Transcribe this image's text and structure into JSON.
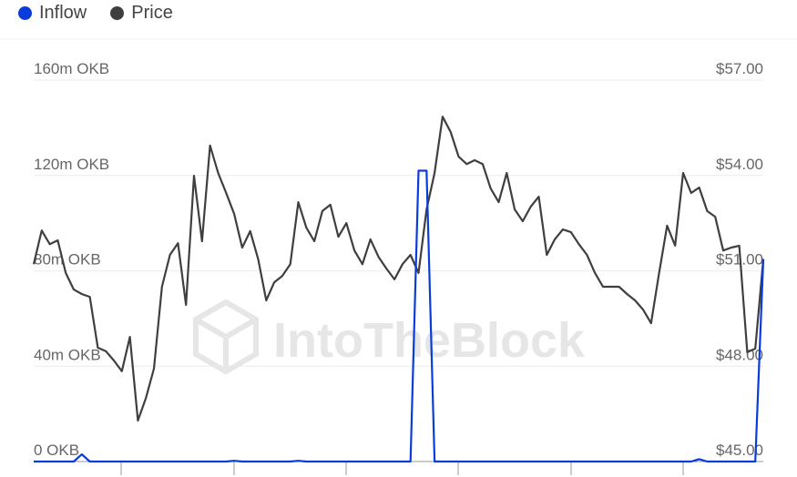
{
  "chart_data": {
    "type": "line",
    "legend": [
      {
        "label": "Inflow",
        "color": "#0a3cdc"
      },
      {
        "label": "Price",
        "color": "#3f3f3f"
      }
    ],
    "legend_position": "top-left",
    "left_axis": {
      "ticks": [
        "0 OKB",
        "40m OKB",
        "80m OKB",
        "120m OKB",
        "160m OKB"
      ],
      "values": [
        0,
        40,
        80,
        120,
        160
      ],
      "unit": "million OKB",
      "range": [
        0,
        160
      ]
    },
    "right_axis": {
      "ticks": [
        "$45.00",
        "$48.00",
        "$51.00",
        "$54.00",
        "$57.00"
      ],
      "values": [
        45,
        48,
        51,
        54,
        57
      ],
      "range": [
        45,
        57
      ]
    },
    "grid": true,
    "watermark": "IntoTheBlock",
    "series": [
      {
        "name": "Price",
        "axis": "right",
        "color": "#3f3f3f",
        "values": [
          51.21,
          52.27,
          51.84,
          51.96,
          50.93,
          50.41,
          50.27,
          50.18,
          48.58,
          48.47,
          48.18,
          47.84,
          48.92,
          46.29,
          47.0,
          47.92,
          50.5,
          51.5,
          51.87,
          49.93,
          53.99,
          51.93,
          54.94,
          54.08,
          53.45,
          52.79,
          51.73,
          52.25,
          51.36,
          50.07,
          50.64,
          50.84,
          51.21,
          53.16,
          52.36,
          51.93,
          52.88,
          53.08,
          52.07,
          52.5,
          51.64,
          51.21,
          51.99,
          51.44,
          51.07,
          50.73,
          51.21,
          51.5,
          50.93,
          52.93,
          54.08,
          55.85,
          55.37,
          54.59,
          54.36,
          54.48,
          54.36,
          53.59,
          53.16,
          54.08,
          52.93,
          52.56,
          53.02,
          53.33,
          51.5,
          51.99,
          52.3,
          52.22,
          51.84,
          51.5,
          50.93,
          50.5,
          50.5,
          50.5,
          50.27,
          50.07,
          49.78,
          49.35,
          50.93,
          52.42,
          51.79,
          54.08,
          53.45,
          53.62,
          52.88,
          52.7,
          51.64,
          51.73,
          51.79,
          48.44,
          48.55,
          51.36
        ]
      },
      {
        "name": "Inflow",
        "axis": "left",
        "color": "#0a3cdc",
        "values": [
          0,
          0,
          0,
          0,
          0,
          0,
          3,
          0,
          0,
          0,
          0,
          0,
          0,
          0,
          0,
          0,
          0,
          0,
          0,
          0,
          0,
          0,
          0,
          0,
          0,
          0.3,
          0,
          0,
          0,
          0,
          0,
          0,
          0,
          0.3,
          0,
          0,
          0,
          0,
          0,
          0,
          0,
          0,
          0,
          0,
          0,
          0,
          0,
          0,
          122,
          122,
          0,
          0,
          0,
          0,
          0,
          0,
          0,
          0,
          0,
          0,
          0,
          0,
          0,
          0,
          0,
          0,
          0,
          0,
          0,
          0,
          0,
          0,
          0,
          0,
          0,
          0,
          0,
          0,
          0,
          0,
          0,
          0,
          0,
          1,
          0,
          0,
          0,
          0,
          0,
          0,
          0,
          85
        ]
      }
    ]
  }
}
